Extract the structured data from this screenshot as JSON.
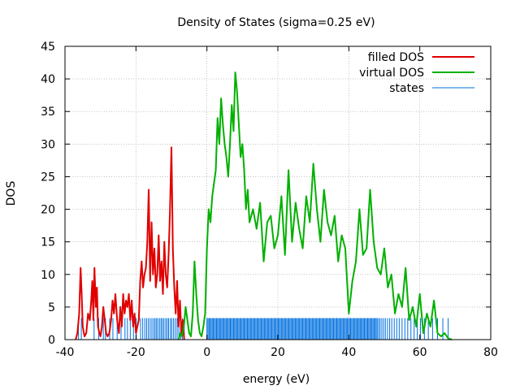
{
  "chart_data": {
    "type": "line",
    "title": "Density of States (sigma=0.25 eV)",
    "xlabel": "energy (eV)",
    "ylabel": "DOS",
    "xlim": [
      -40,
      80
    ],
    "ylim": [
      0,
      45
    ],
    "x_ticks": [
      -40,
      -20,
      0,
      20,
      40,
      60,
      80
    ],
    "y_ticks": [
      0,
      5,
      10,
      15,
      20,
      25,
      30,
      35,
      40,
      45
    ],
    "grid": true,
    "legend_position": "top-right",
    "series": [
      {
        "name": "filled DOS",
        "color": "#e00000",
        "x": [
          -37,
          -36.5,
          -36,
          -35.6,
          -35.3,
          -35,
          -34.5,
          -34,
          -33.5,
          -33,
          -32.6,
          -32.3,
          -32,
          -31.7,
          -31.3,
          -31,
          -30.7,
          -30.3,
          -30,
          -29.6,
          -29.2,
          -28.8,
          -28.4,
          -28,
          -27.5,
          -27,
          -26.6,
          -26.2,
          -25.8,
          -25.3,
          -24.8,
          -24.4,
          -24,
          -23.6,
          -23.2,
          -22.8,
          -22.4,
          -22,
          -21.6,
          -21.2,
          -20.8,
          -20.4,
          -20,
          -19.6,
          -19.2,
          -18.8,
          -18.4,
          -18,
          -17.6,
          -17.2,
          -16.8,
          -16.4,
          -16,
          -15.6,
          -15.2,
          -14.8,
          -14.4,
          -14,
          -13.6,
          -13.2,
          -12.8,
          -12.4,
          -12,
          -11.6,
          -11.2,
          -10.8,
          -10.4,
          -10,
          -9.6,
          -9.2,
          -8.8,
          -8.4,
          -8,
          -7.6,
          -7.2,
          -6.8,
          -6.4
        ],
        "y": [
          0,
          1,
          4,
          11,
          7,
          2,
          0.5,
          1,
          4,
          3,
          6,
          9,
          3,
          11,
          5,
          8,
          2,
          1,
          0.5,
          2,
          5,
          3,
          1,
          0.5,
          1,
          3,
          6,
          4,
          7,
          3,
          1,
          5,
          2,
          7,
          4,
          6,
          5,
          7,
          3,
          6,
          2,
          4,
          1,
          2,
          3,
          9,
          12,
          8,
          10,
          11,
          15,
          23,
          9,
          18,
          10,
          14,
          8,
          10,
          16,
          9,
          12,
          7,
          15,
          10,
          8,
          13,
          20,
          29.5,
          14,
          8,
          4,
          9,
          2,
          6,
          1,
          3,
          0
        ]
      },
      {
        "name": "virtual DOS",
        "color": "#00b000",
        "x": [
          -8,
          -7.5,
          -7,
          -6.5,
          -6,
          -5.5,
          -5,
          -4.5,
          -4,
          -3.5,
          -3,
          -2.5,
          -2,
          -1.5,
          -1,
          -0.5,
          0,
          0.5,
          1,
          1.5,
          2,
          2.5,
          3,
          3.5,
          4,
          4.5,
          5,
          5.5,
          6,
          6.5,
          7,
          7.5,
          8,
          8.5,
          9,
          9.5,
          10,
          10.5,
          11,
          11.5,
          12,
          13,
          14,
          15,
          16,
          17,
          18,
          19,
          20,
          21,
          22,
          23,
          24,
          25,
          26,
          27,
          28,
          29,
          30,
          31,
          32,
          33,
          34,
          35,
          36,
          37,
          38,
          39,
          40,
          41,
          42,
          43,
          44,
          45,
          46,
          47,
          48,
          49,
          50,
          51,
          52,
          53,
          54,
          55,
          56,
          57,
          58,
          59,
          60,
          61,
          62,
          63,
          64,
          65,
          66,
          67,
          68,
          69
        ],
        "y": [
          0,
          1,
          0.5,
          2,
          5,
          3,
          1,
          0.5,
          4,
          12,
          7,
          3,
          1,
          0.5,
          2,
          4,
          14,
          20,
          18,
          22,
          24,
          26,
          34,
          30,
          37,
          33,
          30,
          28,
          25,
          30,
          36,
          32,
          41,
          38,
          33,
          28,
          30,
          26,
          20,
          23,
          18,
          20,
          17,
          21,
          12,
          18,
          19,
          14,
          16,
          22,
          13,
          26,
          15,
          21,
          17,
          14,
          22,
          18,
          27,
          20,
          15,
          23,
          18,
          16,
          19,
          12,
          16,
          14,
          4,
          9,
          12,
          20,
          13,
          14,
          23,
          15,
          11,
          10,
          14,
          8,
          10,
          4,
          7,
          5,
          11,
          3,
          5,
          2,
          7,
          1,
          4,
          2,
          6,
          1,
          0.5,
          1,
          0.2,
          0
        ]
      }
    ],
    "states": {
      "name": "states",
      "color": "#0070e0",
      "height": 3.3,
      "positions": [
        -36.2,
        -35.4,
        -31.8,
        -30.5,
        -29.2,
        -28.6,
        -27.4,
        -26.5,
        -25.3,
        -24.2,
        -23.1,
        -22.4,
        -21.6,
        -20.7,
        -19.9,
        -18.7,
        -18.1,
        -17.5,
        -17,
        -16.5,
        -16,
        -15.5,
        -15,
        -14.6,
        -14.2,
        -13.8,
        -13.3,
        -12.9,
        -12.5,
        -12.1,
        -11.6,
        -11.2,
        -10.8,
        -10.3,
        -9.9,
        -9.4,
        -8.9,
        -8.4,
        -7.9,
        -7.4,
        -6.9,
        -6.4,
        0,
        0.3,
        0.6,
        0.9,
        1.2,
        1.5,
        1.8,
        2.1,
        2.4,
        2.7,
        3,
        3.3,
        3.6,
        3.9,
        4.2,
        4.5,
        4.8,
        5.1,
        5.4,
        5.7,
        6,
        6.3,
        6.6,
        6.9,
        7.2,
        7.5,
        7.8,
        8.1,
        8.4,
        8.7,
        9,
        9.3,
        9.6,
        9.9,
        10.2,
        10.5,
        10.8,
        11.1,
        11.4,
        11.7,
        12,
        12.3,
        12.6,
        12.9,
        13.2,
        13.5,
        13.8,
        14.1,
        14.4,
        14.7,
        15,
        15.3,
        15.6,
        15.9,
        16.2,
        16.5,
        16.8,
        17.1,
        17.4,
        17.7,
        18,
        18.3,
        18.6,
        18.9,
        19.2,
        19.5,
        19.8,
        20.1,
        20.4,
        20.7,
        21,
        21.3,
        21.6,
        21.9,
        22.2,
        22.5,
        22.8,
        23.1,
        23.4,
        23.7,
        24,
        24.3,
        24.6,
        24.9,
        25.2,
        25.5,
        25.8,
        26.1,
        26.4,
        26.7,
        27,
        27.3,
        27.6,
        27.9,
        28.2,
        28.5,
        28.8,
        29.1,
        29.4,
        29.7,
        30,
        30.3,
        30.6,
        30.9,
        31.2,
        31.5,
        31.8,
        32.1,
        32.4,
        32.7,
        33,
        33.3,
        33.6,
        33.9,
        34.2,
        34.5,
        34.8,
        35.1,
        35.4,
        35.7,
        36,
        36.3,
        36.6,
        36.9,
        37.2,
        37.5,
        37.8,
        38.1,
        38.4,
        38.7,
        39,
        39.3,
        39.6,
        39.9,
        40.2,
        40.5,
        40.8,
        41.1,
        41.4,
        41.7,
        42,
        42.3,
        42.6,
        42.9,
        43.2,
        43.5,
        43.8,
        44.1,
        44.4,
        44.7,
        45,
        45.3,
        45.6,
        45.9,
        46.2,
        46.5,
        46.8,
        47.1,
        47.4,
        47.7,
        48,
        48.4,
        48.8,
        49.3,
        49.8,
        50.3,
        50.9,
        51.5,
        52.1,
        52.8,
        53.5,
        54.2,
        55,
        55.8,
        56.6,
        57.5,
        58.4,
        59.3,
        60.2,
        61.3,
        62.4,
        63.6,
        65,
        66.5,
        68
      ]
    }
  }
}
